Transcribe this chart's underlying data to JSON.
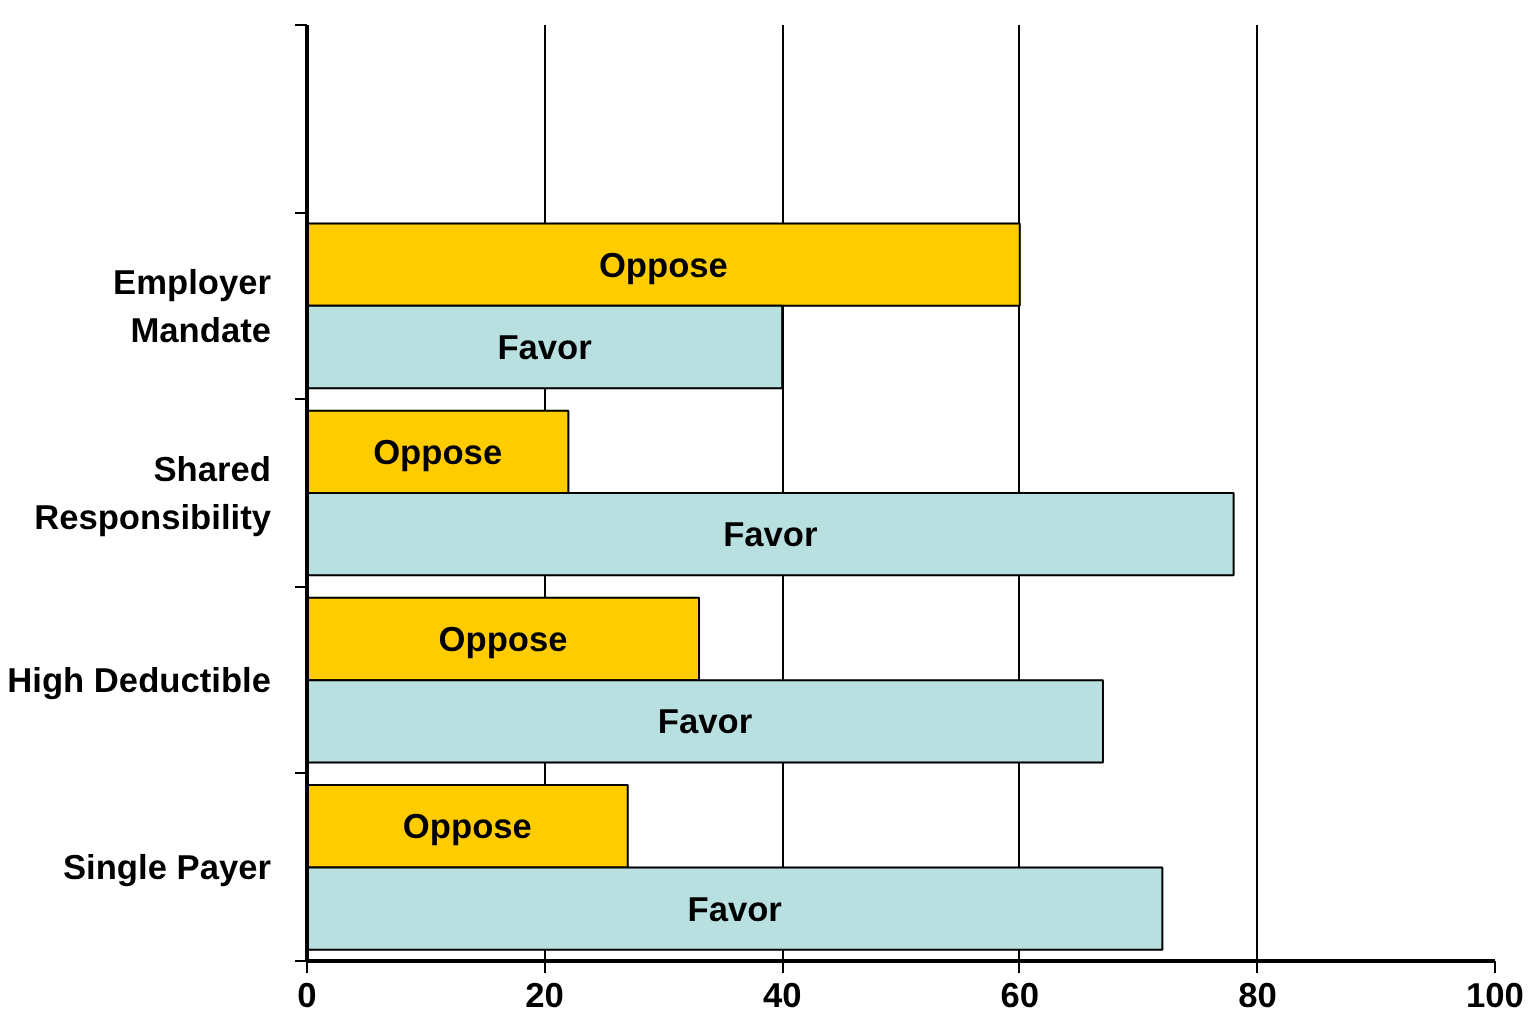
{
  "chart_data": {
    "type": "bar",
    "orientation": "horizontal",
    "categories": [
      null,
      "Employer\nMandate",
      "Shared\nResponsibility",
      "High Deductible",
      "Single Payer"
    ],
    "series": [
      {
        "name": "Oppose",
        "color": "#ffcc00",
        "values": [
          null,
          60,
          22,
          33,
          27
        ]
      },
      {
        "name": "Favor",
        "color": "#b8e0e0",
        "values": [
          null,
          40,
          78,
          67,
          72
        ]
      }
    ],
    "xlim": [
      0,
      100
    ],
    "xticks": [
      0,
      20,
      40,
      60,
      80,
      100
    ],
    "grid": "x"
  }
}
